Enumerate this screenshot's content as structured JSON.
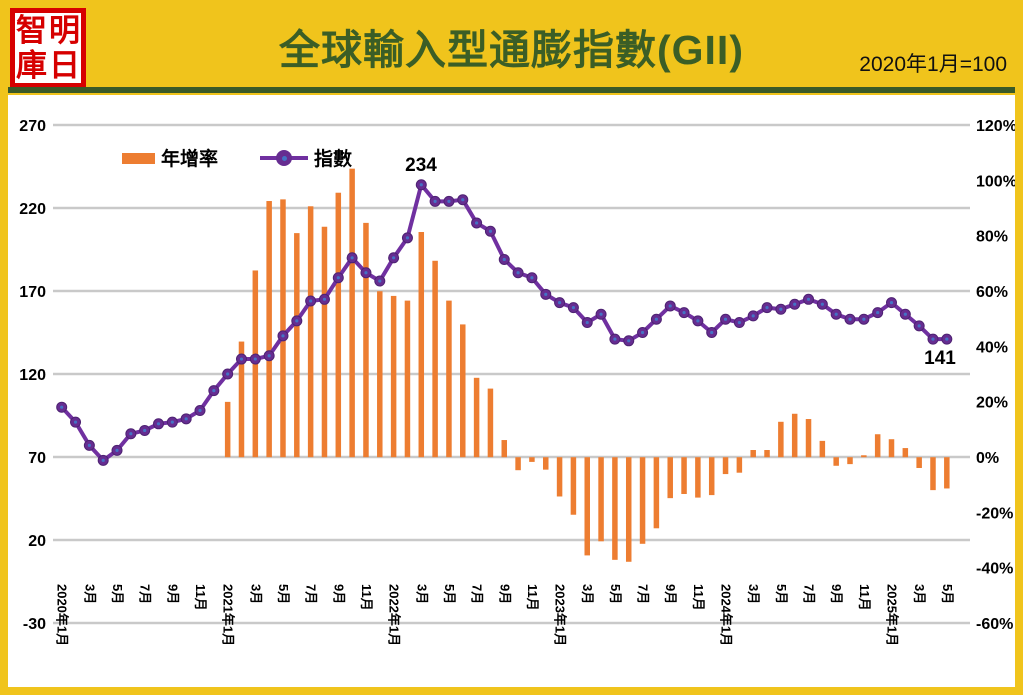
{
  "header": {
    "logo_chars": [
      "智",
      "明",
      "庫",
      "日"
    ],
    "logo_name": "明日智庫",
    "title": "全球輸入型通膨指數(GII)",
    "subtitle": "2020年1月=100"
  },
  "legend": {
    "bar_label": "年增率",
    "line_label": "指數"
  },
  "annotations": {
    "peak": "234",
    "last": "141"
  },
  "colors": {
    "frame_yellow": "#F0C41C",
    "title_green": "#3B5E26",
    "bar_orange": "#ED7D31",
    "line_purple": "#7030A0",
    "marker_purple": "#662D91",
    "marker_center_blue": "#4472C4",
    "seal_red": "#D60000",
    "grid_gray": "#C9C9C9"
  },
  "chart_data": {
    "type": "combo bar+line",
    "title": "全球輸入型通膨指數(GII)",
    "note": "2020年1月=100",
    "categories": [
      "2020-01",
      "2020-02",
      "2020-03",
      "2020-04",
      "2020-05",
      "2020-06",
      "2020-07",
      "2020-08",
      "2020-09",
      "2020-10",
      "2020-11",
      "2020-12",
      "2021-01",
      "2021-02",
      "2021-03",
      "2021-04",
      "2021-05",
      "2021-06",
      "2021-07",
      "2021-08",
      "2021-09",
      "2021-10",
      "2021-11",
      "2021-12",
      "2022-01",
      "2022-02",
      "2022-03",
      "2022-04",
      "2022-05",
      "2022-06",
      "2022-07",
      "2022-08",
      "2022-09",
      "2022-10",
      "2022-11",
      "2022-12",
      "2023-01",
      "2023-02",
      "2023-03",
      "2023-04",
      "2023-05",
      "2023-06",
      "2023-07",
      "2023-08",
      "2023-09",
      "2023-10",
      "2023-11",
      "2023-12",
      "2024-01",
      "2024-02",
      "2024-03",
      "2024-04",
      "2024-05",
      "2024-06",
      "2024-07",
      "2024-08",
      "2024-09",
      "2024-10",
      "2024-11",
      "2024-12",
      "2025-01",
      "2025-02",
      "2025-03",
      "2025-04",
      "2025-05"
    ],
    "x_tick_labels": [
      "2020年1月",
      "3月",
      "5月",
      "7月",
      "9月",
      "11月",
      "2021年1月",
      "3月",
      "5月",
      "7月",
      "9月",
      "11月",
      "2022年1月",
      "3月",
      "5月",
      "7月",
      "9月",
      "11月",
      "2023年1月",
      "3月",
      "5月",
      "7月",
      "9月",
      "11月",
      "2024年1月",
      "3月",
      "5月",
      "7月",
      "9月",
      "11月",
      "2025年1月",
      "3月",
      "5月"
    ],
    "series": [
      {
        "name": "年增率",
        "type": "bar",
        "axis": "right",
        "unit": "%",
        "values": [
          null,
          null,
          null,
          null,
          null,
          null,
          null,
          null,
          null,
          null,
          null,
          null,
          20.0,
          41.8,
          67.5,
          92.6,
          93.2,
          81.0,
          90.7,
          83.3,
          95.6,
          104.3,
          84.7,
          60.0,
          58.3,
          56.6,
          81.4,
          71.0,
          56.6,
          48.0,
          28.7,
          24.8,
          6.2,
          -4.7,
          -1.7,
          -4.5,
          -14.2,
          -20.8,
          -35.5,
          -30.4,
          -37.1,
          -37.8,
          -31.3,
          -25.7,
          -14.8,
          -13.3,
          -14.6,
          -13.7,
          -6.1,
          -5.6,
          2.6,
          2.6,
          12.8,
          15.7,
          13.8,
          5.9,
          -3.1,
          -2.5,
          0.7,
          8.3,
          6.5,
          3.3,
          -3.9,
          -11.9,
          -11.3
        ]
      },
      {
        "name": "指數",
        "type": "line",
        "axis": "left",
        "values": [
          100,
          91,
          77,
          68,
          74,
          84,
          86,
          90,
          91,
          93,
          98,
          110,
          120,
          129,
          129,
          131,
          143,
          152,
          164,
          165,
          178,
          190,
          181,
          176,
          190,
          202,
          234,
          224,
          224,
          225,
          211,
          206,
          189,
          181,
          178,
          168,
          163,
          160,
          151,
          156,
          141,
          140,
          145,
          153,
          161,
          157,
          152,
          145,
          153,
          151,
          155,
          160,
          159,
          162,
          165,
          162,
          156,
          153,
          153,
          157,
          163,
          156,
          149,
          141,
          141
        ]
      }
    ],
    "left_axis": {
      "ticks": [
        270,
        220,
        170,
        120,
        70,
        20,
        -30
      ],
      "range": [
        -30,
        270
      ]
    },
    "right_axis": {
      "ticks": [
        "120%",
        "100%",
        "80%",
        "60%",
        "40%",
        "20%",
        "0%",
        "-20%",
        "-40%",
        "-60%"
      ],
      "range": [
        -60,
        120
      ]
    },
    "legend_position": "top-left-inside",
    "grid": true,
    "data_labels": {
      "2022-03": 234,
      "2025-05": 141
    }
  }
}
